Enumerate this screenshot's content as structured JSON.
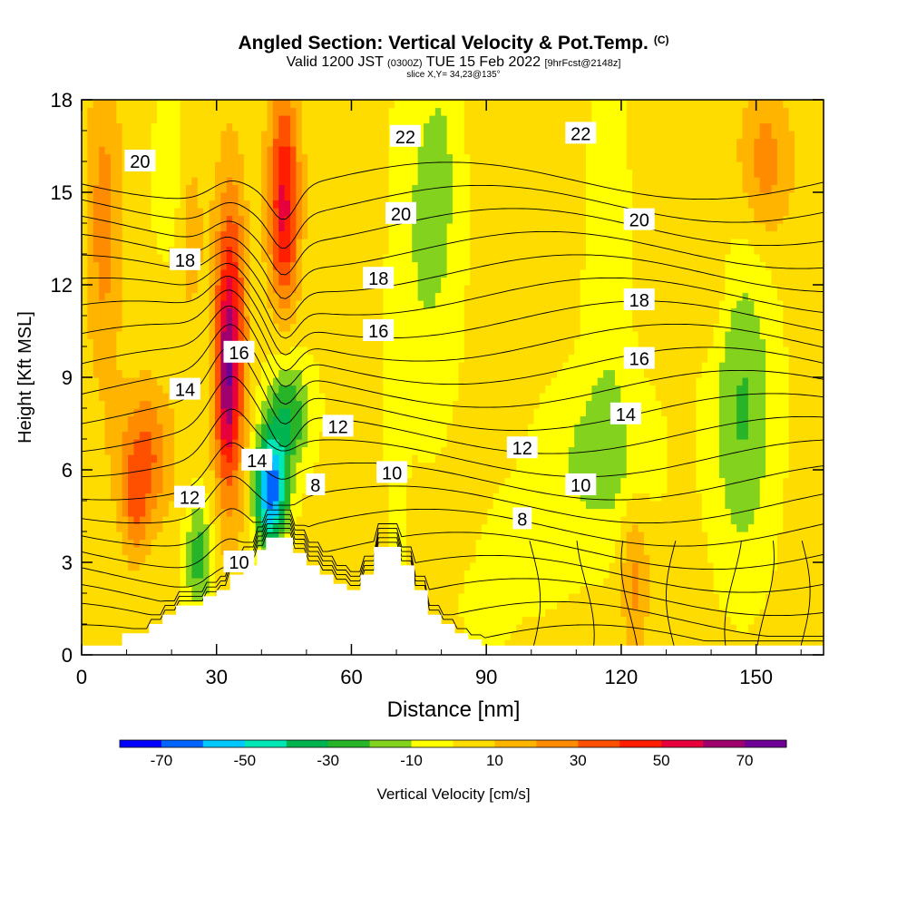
{
  "header": {
    "title": "Angled Section: Vertical Velocity & Pot.Temp.",
    "copyright": "(C)",
    "valid_pre": "Valid 1200 JST",
    "valid_utc": "(0300Z)",
    "valid_post": "TUE 15 Feb 2022",
    "forecast": "[9hrFcst@2148z]",
    "slice": "slice X,Y= 34,23@135°"
  },
  "chart_data": {
    "type": "heatmap",
    "title": "Angled Section: Vertical Velocity & Pot.Temp.",
    "xlabel": "Distance [nm]",
    "ylabel": "Height [Kft MSL]",
    "xlim": [
      0,
      165
    ],
    "ylim": [
      0,
      18
    ],
    "x_ticks": [
      0,
      30,
      60,
      90,
      120,
      150
    ],
    "y_ticks": [
      0,
      3,
      6,
      9,
      12,
      15,
      18
    ],
    "colorbar": {
      "label": "Vertical Velocity [cm/s]",
      "ticks": [
        -70,
        -50,
        -30,
        -10,
        10,
        30,
        50,
        70
      ],
      "levels": [
        -80,
        -70,
        -60,
        -50,
        -40,
        -30,
        -20,
        -10,
        0,
        10,
        20,
        30,
        40,
        50,
        60,
        70,
        80
      ],
      "colors": [
        "#0000ff",
        "#0064ff",
        "#00c8ff",
        "#00e6b4",
        "#00b450",
        "#28b428",
        "#82d21e",
        "#ffff00",
        "#ffdc00",
        "#ffb400",
        "#ff8c00",
        "#ff5000",
        "#ff1e00",
        "#e6003c",
        "#a0006e",
        "#6e0096"
      ]
    },
    "theta_contour_labels": [
      {
        "label": "20",
        "x": 13,
        "y": 16.0
      },
      {
        "label": "22",
        "x": 72,
        "y": 16.8
      },
      {
        "label": "22",
        "x": 111,
        "y": 16.9
      },
      {
        "label": "20",
        "x": 71,
        "y": 14.3
      },
      {
        "label": "20",
        "x": 124,
        "y": 14.1
      },
      {
        "label": "18",
        "x": 23,
        "y": 12.8
      },
      {
        "label": "18",
        "x": 66,
        "y": 12.2
      },
      {
        "label": "18",
        "x": 124,
        "y": 11.5
      },
      {
        "label": "16",
        "x": 35,
        "y": 9.8
      },
      {
        "label": "16",
        "x": 66,
        "y": 10.5
      },
      {
        "label": "16",
        "x": 124,
        "y": 9.6
      },
      {
        "label": "14",
        "x": 23,
        "y": 8.6
      },
      {
        "label": "14",
        "x": 39,
        "y": 6.3
      },
      {
        "label": "14",
        "x": 121,
        "y": 7.8
      },
      {
        "label": "12",
        "x": 24,
        "y": 5.1
      },
      {
        "label": "12",
        "x": 57,
        "y": 7.4
      },
      {
        "label": "12",
        "x": 98,
        "y": 6.7
      },
      {
        "label": "10",
        "x": 35,
        "y": 3.0
      },
      {
        "label": "10",
        "x": 69,
        "y": 5.9
      },
      {
        "label": "10",
        "x": 111,
        "y": 5.5
      },
      {
        "label": "8",
        "x": 52,
        "y": 5.5
      },
      {
        "label": "8",
        "x": 98,
        "y": 4.4
      }
    ],
    "terrain": [
      [
        0,
        0.3
      ],
      [
        9,
        0.3
      ],
      [
        9,
        0.7
      ],
      [
        15,
        0.7
      ],
      [
        15,
        1.0
      ],
      [
        18,
        1.0
      ],
      [
        18,
        1.3
      ],
      [
        21,
        1.3
      ],
      [
        21,
        1.6
      ],
      [
        24,
        1.6
      ],
      [
        24,
        1.6
      ],
      [
        27,
        1.6
      ],
      [
        27,
        1.9
      ],
      [
        30,
        1.9
      ],
      [
        30,
        2.1
      ],
      [
        33,
        2.1
      ],
      [
        33,
        2.6
      ],
      [
        36,
        2.6
      ],
      [
        36,
        2.9
      ],
      [
        39,
        2.9
      ],
      [
        39,
        3.4
      ],
      [
        41,
        3.4
      ],
      [
        41,
        3.8
      ],
      [
        47,
        3.8
      ],
      [
        47,
        3.3
      ],
      [
        50,
        3.3
      ],
      [
        50,
        2.9
      ],
      [
        53,
        2.9
      ],
      [
        53,
        2.6
      ],
      [
        56,
        2.6
      ],
      [
        56,
        2.3
      ],
      [
        59,
        2.3
      ],
      [
        59,
        2.1
      ],
      [
        62,
        2.1
      ],
      [
        62,
        2.6
      ],
      [
        65,
        2.6
      ],
      [
        65,
        3.5
      ],
      [
        71,
        3.5
      ],
      [
        71,
        2.9
      ],
      [
        74,
        2.9
      ],
      [
        74,
        2.1
      ],
      [
        77,
        2.1
      ],
      [
        77,
        1.3
      ],
      [
        80,
        1.3
      ],
      [
        80,
        1.0
      ],
      [
        83,
        1.0
      ],
      [
        83,
        0.7
      ],
      [
        86,
        0.7
      ],
      [
        86,
        0.5
      ],
      [
        89,
        0.5
      ],
      [
        89,
        0.3
      ],
      [
        165,
        0.3
      ]
    ],
    "grid": false,
    "legend": "bottom"
  }
}
